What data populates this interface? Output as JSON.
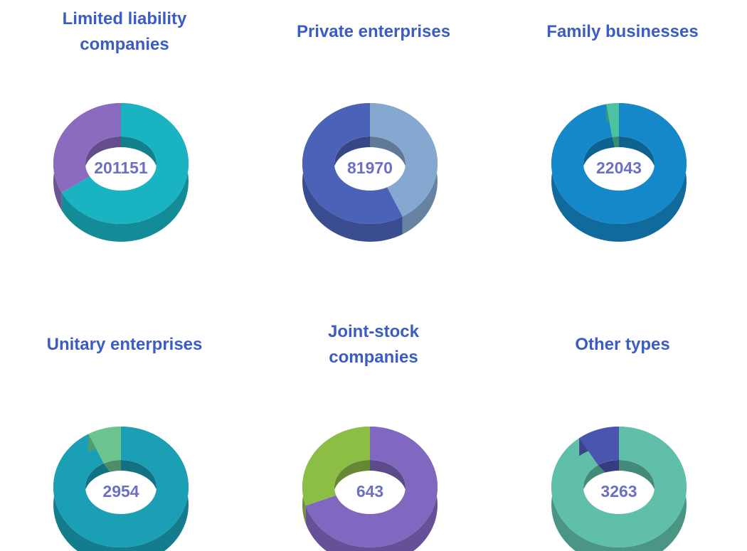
{
  "chart_data": [
    {
      "type": "pie",
      "title": "Limited liability\ncompanies",
      "total": 201151,
      "values": [
        67,
        33
      ],
      "colors": [
        "#1ab3c2",
        "#8a6bbf"
      ]
    },
    {
      "type": "pie",
      "title": "Private enterprises",
      "total": 81970,
      "values": [
        42,
        58
      ],
      "colors": [
        "#85a8d0",
        "#4a63b8"
      ]
    },
    {
      "type": "pie",
      "title": "Family businesses",
      "total": 22043,
      "values": [
        97,
        3
      ],
      "colors": [
        "#1488c8",
        "#4cc3a0"
      ]
    },
    {
      "type": "pie",
      "title": "Unitary enterprises",
      "total": 2954,
      "values": [
        92,
        8
      ],
      "colors": [
        "#1a9fb5",
        "#6cc58f"
      ]
    },
    {
      "type": "pie",
      "title": "Joint-stock\ncompanies",
      "total": 643,
      "values": [
        70,
        30
      ],
      "colors": [
        "#8068c0",
        "#8cbd45"
      ]
    },
    {
      "type": "pie",
      "title": "Other types",
      "total": 3263,
      "values": [
        90,
        10
      ],
      "colors": [
        "#5fbfa8",
        "#4a55b0"
      ]
    }
  ]
}
